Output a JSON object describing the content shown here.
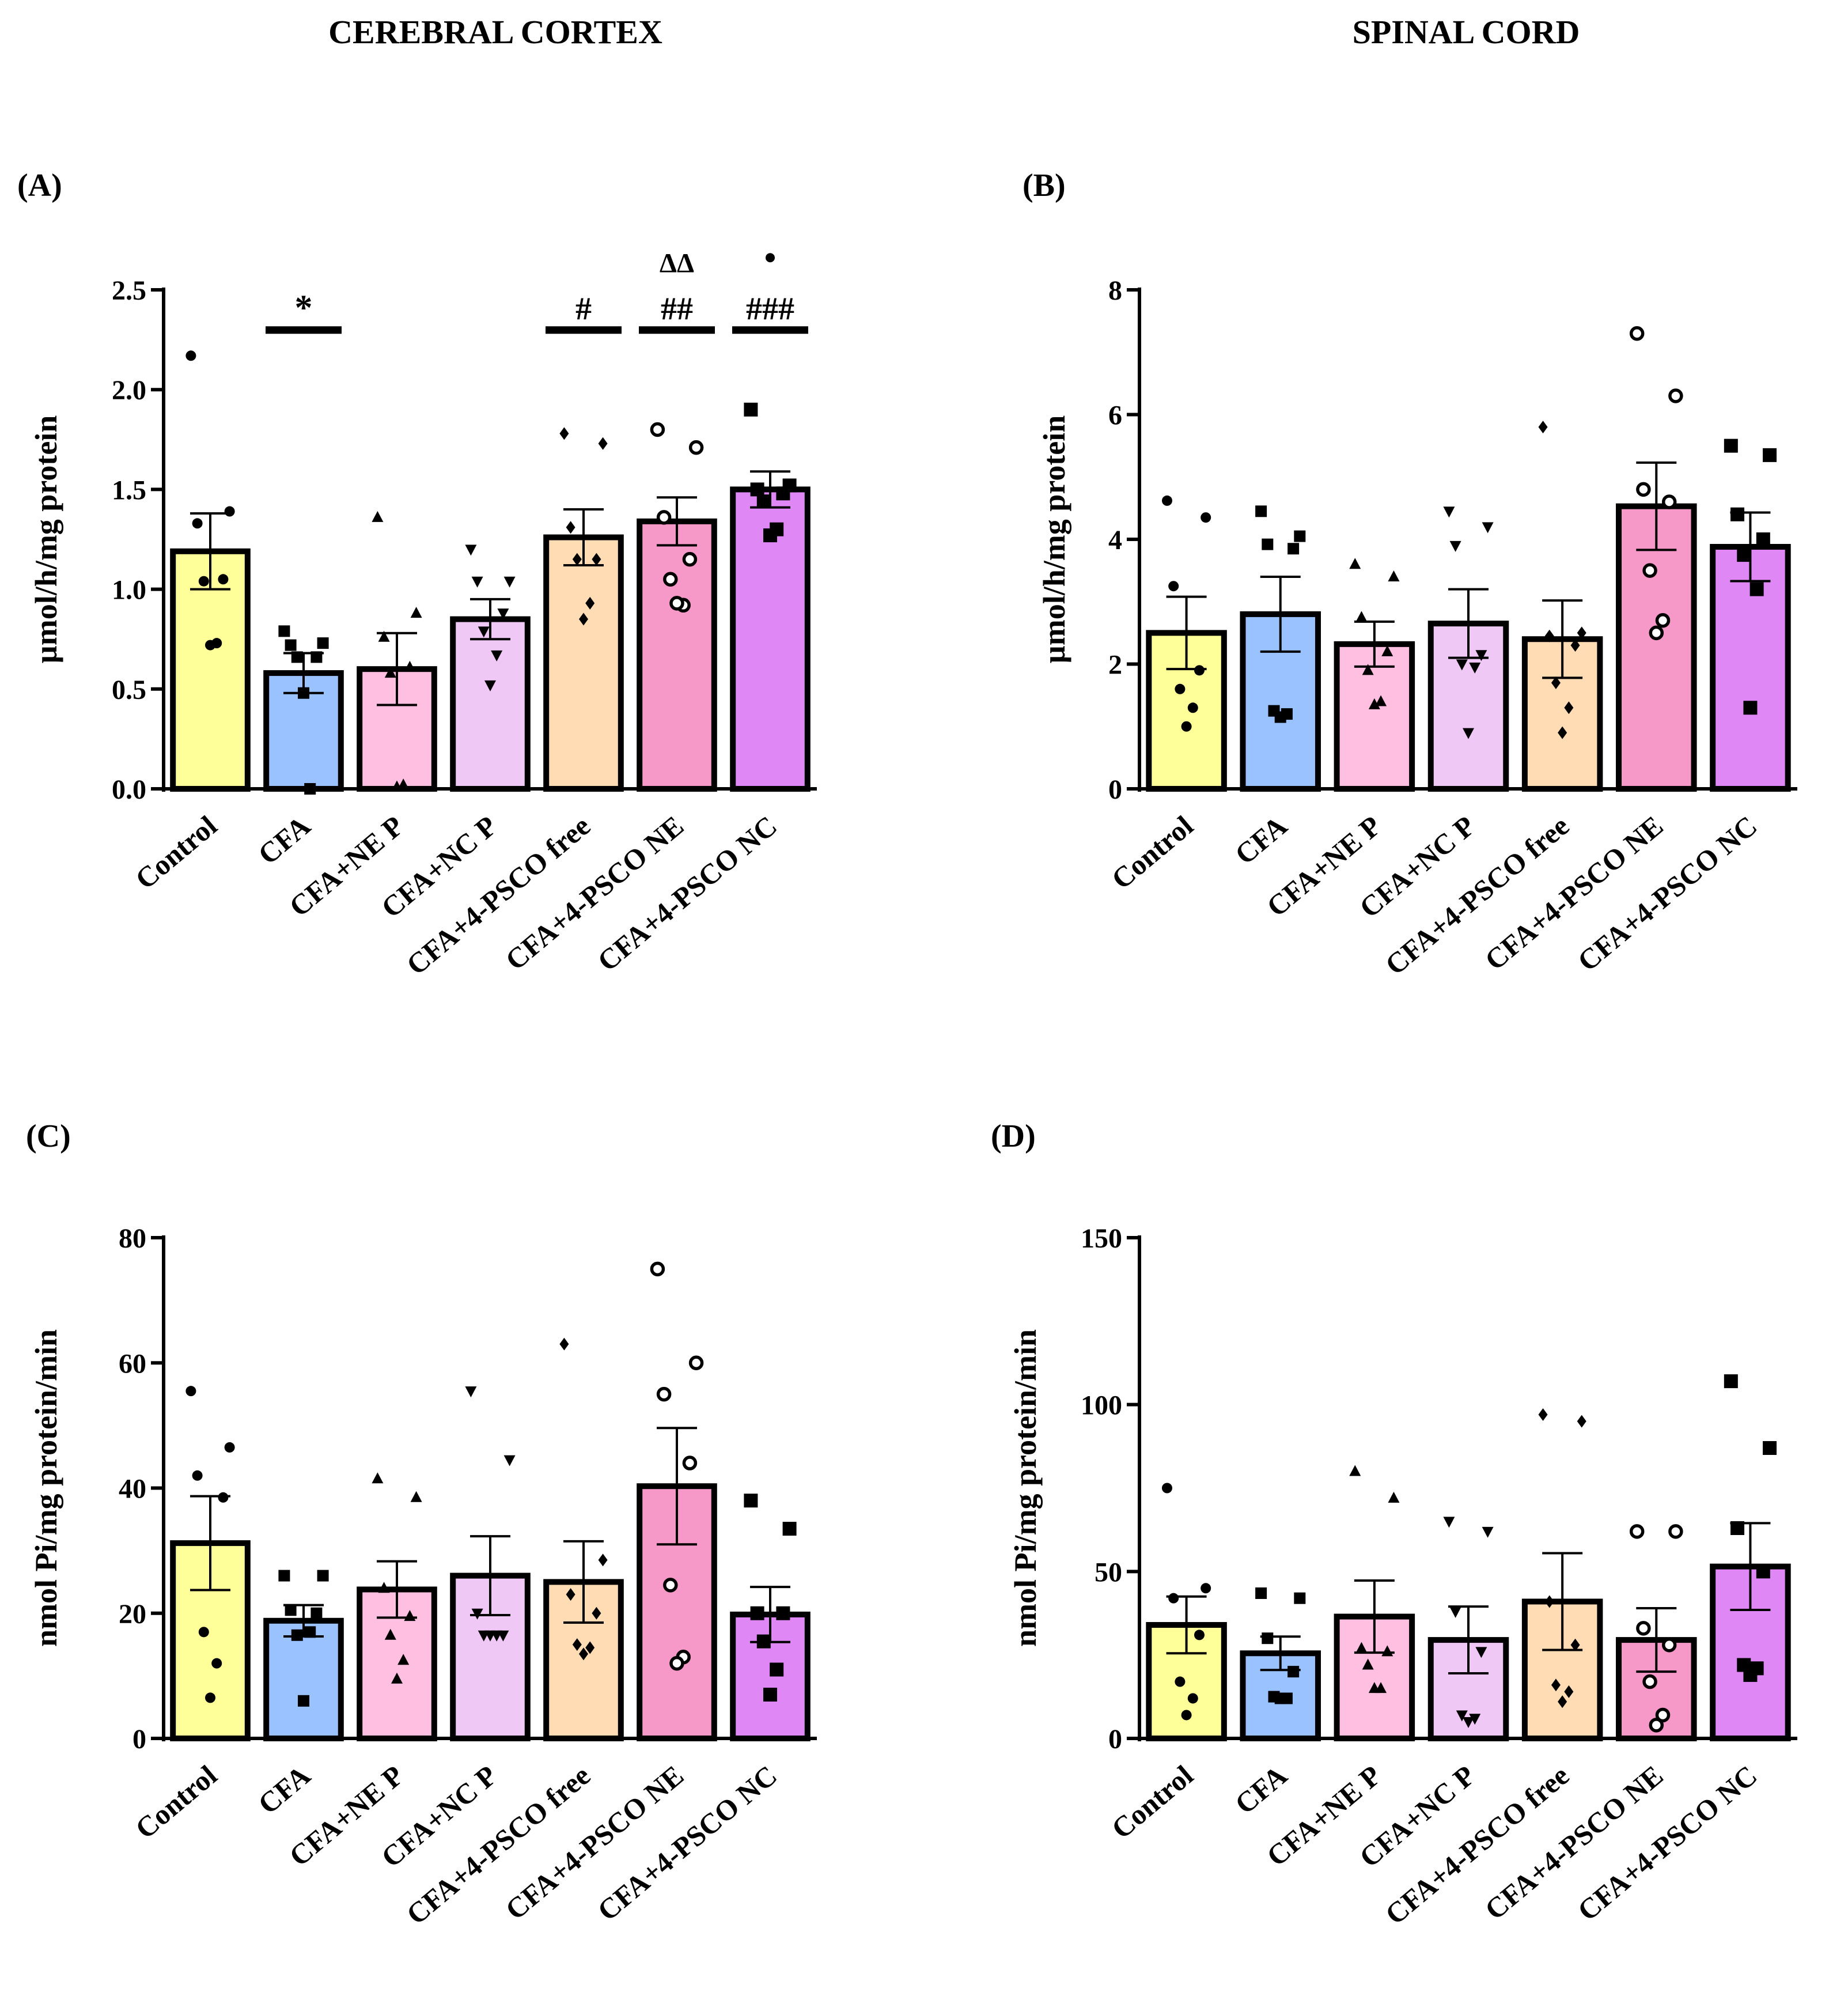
{
  "column_titles": {
    "left": "CEREBRAL CORTEX",
    "right": "SPINAL CORD"
  },
  "groups": [
    "Control",
    "CFA",
    "CFA+NE P",
    "CFA+NC P",
    "CFA+4-PSCO free",
    "CFA+4-PSCO NE",
    "CFA+4-PSCO NC"
  ],
  "colors": [
    "#ffff99",
    "#99c2ff",
    "#ffbfe0",
    "#f0c8f5",
    "#ffdcb4",
    "#f799c8",
    "#df88f5"
  ],
  "chart_data": [
    {
      "id": "A",
      "panel_label": "(A)",
      "type": "bar",
      "ylabel": "µmol/h/mg protein",
      "ylim": [
        0,
        2.5
      ],
      "yticks": [
        "0.0",
        "0.5",
        "1.0",
        "1.5",
        "2.0",
        "2.5"
      ],
      "means": [
        1.19,
        0.58,
        0.6,
        0.85,
        1.26,
        1.34,
        1.5
      ],
      "sem": [
        0.19,
        0.1,
        0.18,
        0.1,
        0.14,
        0.12,
        0.09
      ],
      "points": [
        [
          2.17,
          1.39,
          1.33,
          1.05,
          1.04,
          0.73,
          0.72
        ],
        [
          0.79,
          0.73,
          0.72,
          0.66,
          0.66,
          0.0,
          0.48
        ],
        [
          1.36,
          0.88,
          0.76,
          0.61,
          0.58,
          0.02,
          0.01
        ],
        [
          1.2,
          1.04,
          1.04,
          0.88,
          0.79,
          0.67,
          0.52
        ],
        [
          1.78,
          1.73,
          1.31,
          1.15,
          1.15,
          0.93,
          0.85
        ],
        [
          1.8,
          1.71,
          1.36,
          1.15,
          1.05,
          0.92,
          0.93
        ],
        [
          1.9,
          1.52,
          1.5,
          1.48,
          1.44,
          1.3,
          1.27
        ]
      ],
      "annotations": [
        {
          "group": 1,
          "text": "*",
          "bar": true
        },
        {
          "group": 4,
          "text": "#",
          "bar": true
        },
        {
          "group": 5,
          "text": "##",
          "text2": "ΔΔ",
          "bar": true
        },
        {
          "group": 6,
          "text": "###",
          "dot": true,
          "bar": true
        }
      ]
    },
    {
      "id": "B",
      "panel_label": "(B)",
      "type": "bar",
      "ylabel": "µmol/h/mg protein",
      "ylim": [
        0,
        8
      ],
      "yticks": [
        "0",
        "2",
        "4",
        "6",
        "8"
      ],
      "means": [
        2.5,
        2.8,
        2.32,
        2.65,
        2.4,
        4.53,
        3.88
      ],
      "sem": [
        0.58,
        0.6,
        0.36,
        0.55,
        0.62,
        0.7,
        0.55
      ],
      "points": [
        [
          4.62,
          4.35,
          3.25,
          1.9,
          1.6,
          1.3,
          1.0
        ],
        [
          4.45,
          4.05,
          3.92,
          3.85,
          1.25,
          1.2,
          1.15
        ],
        [
          3.6,
          3.4,
          2.75,
          2.2,
          1.9,
          1.4,
          1.35
        ],
        [
          4.45,
          4.2,
          3.9,
          2.15,
          2.0,
          1.95,
          0.9
        ],
        [
          5.8,
          2.5,
          2.45,
          2.3,
          1.7,
          1.3,
          0.9
        ],
        [
          7.3,
          6.3,
          4.8,
          4.6,
          3.5,
          2.7,
          2.5
        ],
        [
          5.5,
          5.35,
          4.4,
          4.0,
          3.75,
          3.2,
          1.3
        ]
      ],
      "annotations": []
    },
    {
      "id": "C",
      "panel_label": "(C)",
      "type": "bar",
      "ylabel": "nmol Pi/mg protein/min",
      "ylim": [
        0,
        80
      ],
      "yticks": [
        "0",
        "20",
        "40",
        "60",
        "80"
      ],
      "means": [
        31.2,
        18.8,
        23.8,
        26.0,
        25.0,
        40.3,
        19.8
      ],
      "sem": [
        7.5,
        2.5,
        4.5,
        6.3,
        6.5,
        9.3,
        4.4
      ],
      "points": [
        [
          55.5,
          46.5,
          42.0,
          38.5,
          17.0,
          12.0,
          6.5
        ],
        [
          26.0,
          26.0,
          20.5,
          20.0,
          16.5,
          17.0,
          6.0
        ],
        [
          41.5,
          38.5,
          24.0,
          19.5,
          16.5,
          12.5,
          9.5
        ],
        [
          55.5,
          44.5,
          20.0,
          16.5,
          16.5,
          16.5,
          16.5
        ],
        [
          63.0,
          28.5,
          23.0,
          20.0,
          15.0,
          14.5,
          13.5
        ],
        [
          75.0,
          60.0,
          55.0,
          44.0,
          24.5,
          13.0,
          12.0
        ],
        [
          38.0,
          33.5,
          20.0,
          20.0,
          15.5,
          11.0,
          7.0
        ]
      ],
      "annotations": []
    },
    {
      "id": "D",
      "panel_label": "(D)",
      "type": "bar",
      "ylabel": "nmol Pi/mg protein/min",
      "ylim": [
        0,
        150
      ],
      "yticks": [
        "0",
        "50",
        "100",
        "150"
      ],
      "means": [
        34.0,
        25.5,
        36.5,
        29.5,
        41.0,
        29.5,
        51.5
      ],
      "sem": [
        8.5,
        5.0,
        10.8,
        10.0,
        14.5,
        9.5,
        13.0
      ],
      "points": [
        [
          75.0,
          45.0,
          42.0,
          31.0,
          17.0,
          12.0,
          7.0
        ],
        [
          43.5,
          42.0,
          30.0,
          20.0,
          12.5,
          12.0,
          12.0
        ],
        [
          80.0,
          72.0,
          27.0,
          26.0,
          22.0,
          15.0,
          15.0
        ],
        [
          65.0,
          62.0,
          38.0,
          26.0,
          7.0,
          6.0,
          5.0
        ],
        [
          97.0,
          95.0,
          41.0,
          28.0,
          16.0,
          14.0,
          11.0
        ],
        [
          62.0,
          62.0,
          33.0,
          28.0,
          17.0,
          7.0,
          4.0
        ],
        [
          107.0,
          87.0,
          63.0,
          50.0,
          22.0,
          21.0,
          19.0
        ]
      ],
      "annotations": []
    }
  ]
}
